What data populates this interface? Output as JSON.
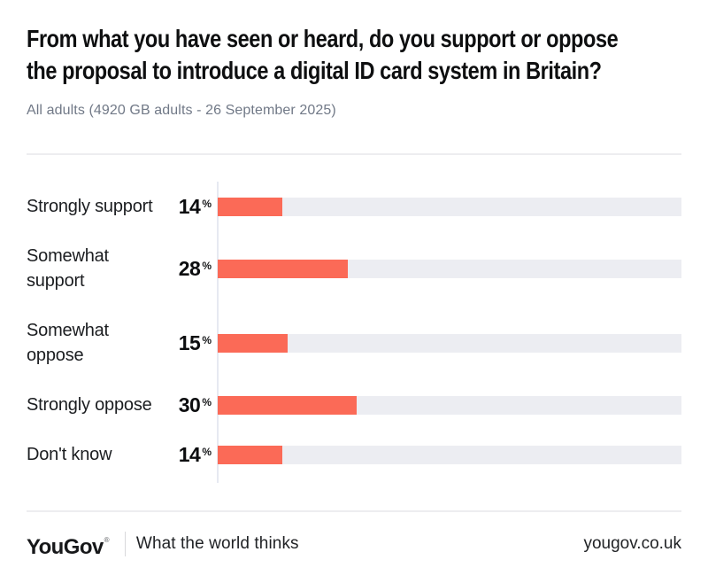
{
  "title": {
    "line1": "From what you have seen or heard, do you support or oppose",
    "line2": "the proposal to introduce a digital ID card system in Britain?"
  },
  "subtitle": "All adults (4920 GB adults - 26 September 2025)",
  "chart_data": {
    "type": "bar",
    "orientation": "horizontal",
    "unit": "%",
    "categories": [
      "Strongly support",
      "Somewhat support",
      "Somewhat oppose",
      "Strongly oppose",
      "Don't know"
    ],
    "label_lines": [
      [
        "Strongly support"
      ],
      [
        "Somewhat",
        "support"
      ],
      [
        "Somewhat",
        "oppose"
      ],
      [
        "Strongly oppose"
      ],
      [
        "Don't know"
      ]
    ],
    "values": [
      14,
      28,
      15,
      30,
      14
    ],
    "xlim": [
      0,
      100
    ],
    "grid": false,
    "legend": false,
    "bar_color": "#fb6a57",
    "track_color": "#ecedf2",
    "axis_color": "#e6e9f1"
  },
  "footer": {
    "logo": "YouGov",
    "registered_mark": "®",
    "tagline": "What the world thinks",
    "website": "yougov.co.uk"
  }
}
